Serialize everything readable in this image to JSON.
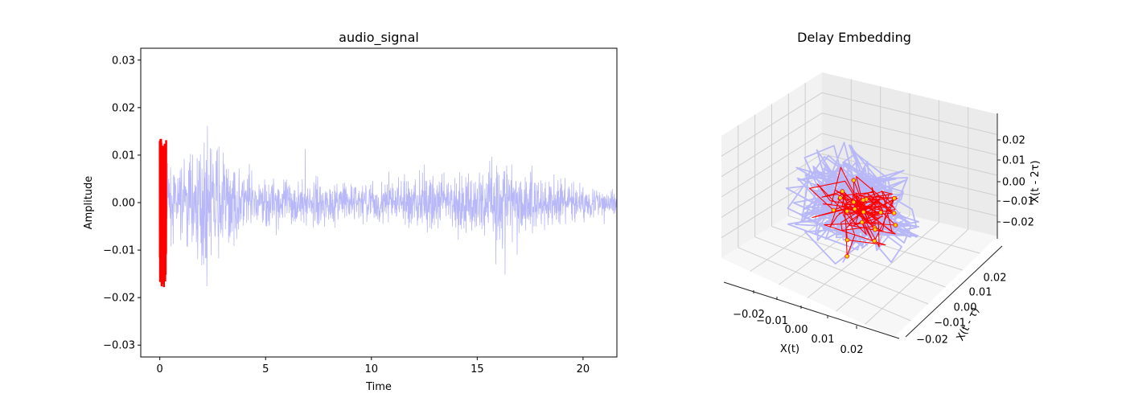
{
  "chart_data": [
    {
      "type": "line",
      "title": "audio_signal",
      "xlabel": "Time",
      "ylabel": "Amplitude",
      "xlim": [
        -0.9,
        21.6
      ],
      "ylim": [
        -0.0325,
        0.0325
      ],
      "x_ticks": [
        0,
        5,
        10,
        15,
        20
      ],
      "x_tick_labels": [
        "0",
        "5",
        "10",
        "15",
        "20"
      ],
      "y_ticks": [
        -0.03,
        -0.02,
        -0.01,
        0.0,
        0.01,
        0.02,
        0.03
      ],
      "y_tick_labels": [
        "−0.03",
        "−0.02",
        "−0.01",
        "0.00",
        "0.01",
        "0.02",
        "0.03"
      ],
      "grid": false,
      "duration": 21.6,
      "series": [
        {
          "role": "full-signal",
          "color": "#b8b8f8",
          "envelope": [
            {
              "t": 0.0,
              "a": 0.004
            },
            {
              "t": 0.3,
              "a": 0.01
            },
            {
              "t": 1.0,
              "a": 0.013
            },
            {
              "t": 1.9,
              "a": 0.02
            },
            {
              "t": 2.6,
              "a": 0.019
            },
            {
              "t": 3.5,
              "a": 0.013
            },
            {
              "t": 4.6,
              "a": 0.009
            },
            {
              "t": 6.0,
              "a": 0.008
            },
            {
              "t": 8.0,
              "a": 0.007
            },
            {
              "t": 10.0,
              "a": 0.007
            },
            {
              "t": 11.5,
              "a": 0.008
            },
            {
              "t": 12.8,
              "a": 0.011
            },
            {
              "t": 13.8,
              "a": 0.008
            },
            {
              "t": 15.0,
              "a": 0.012
            },
            {
              "t": 16.0,
              "a": 0.016
            },
            {
              "t": 17.0,
              "a": 0.013
            },
            {
              "t": 18.2,
              "a": 0.01
            },
            {
              "t": 19.5,
              "a": 0.007
            },
            {
              "t": 20.5,
              "a": 0.005
            },
            {
              "t": 21.6,
              "a": 0.004
            }
          ]
        },
        {
          "role": "highlighted-segment",
          "color": "#ff0000",
          "t_range": [
            0.0,
            0.3
          ],
          "y_range": [
            -0.0178,
            0.0135
          ]
        }
      ]
    },
    {
      "type": "scatter",
      "title": "Delay Embedding",
      "xlabel": "X(t)",
      "ylabel": "X(t - τ)",
      "zlabel": "X(t - 2τ)",
      "xlim": [
        -0.03,
        0.03
      ],
      "ylim": [
        -0.03,
        0.03
      ],
      "zlim": [
        -0.03,
        0.03
      ],
      "x_ticks": [
        -0.02,
        -0.01,
        0.0,
        0.01,
        0.02
      ],
      "x_tick_labels": [
        "−0.02",
        "−0.01",
        "0.00",
        "0.01",
        "0.02"
      ],
      "y_ticks": [
        -0.02,
        -0.01,
        0.0,
        0.01,
        0.02
      ],
      "y_tick_labels": [
        "−0.02",
        "−0.01",
        "0.00",
        "0.01",
        "0.02"
      ],
      "z_ticks": [
        -0.02,
        -0.01,
        0.0,
        0.01,
        0.02
      ],
      "z_tick_labels": [
        "−0.02",
        "−0.01",
        "0.00",
        "0.01",
        "0.02"
      ],
      "grid": true,
      "series": [
        {
          "role": "full-trajectory",
          "color": "#b8b8f8",
          "spread": 0.011
        },
        {
          "role": "highlighted-trajectory",
          "color": "#ff0000",
          "spread": 0.008
        },
        {
          "role": "highlighted-points",
          "color": "#ffd700",
          "edge_color": "#ff0000",
          "count": 20
        }
      ]
    }
  ]
}
